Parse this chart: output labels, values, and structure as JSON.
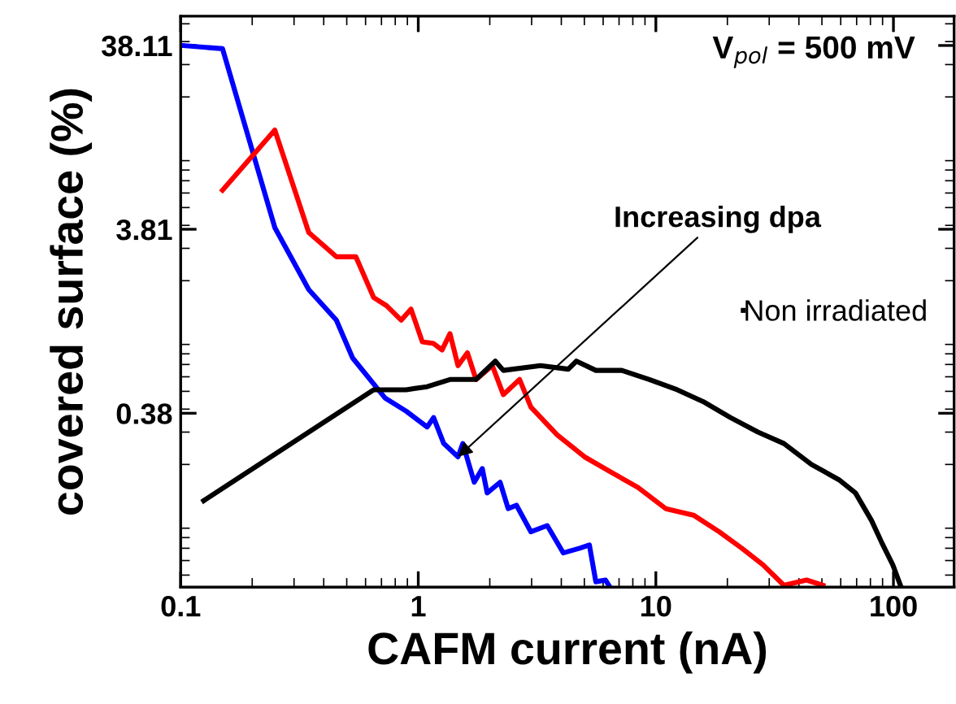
{
  "chart_data": {
    "type": "line",
    "xlabel": "CAFM current (nA)",
    "ylabel": "covered surface (%)",
    "log": "xy",
    "xlim": [
      0.1,
      180
    ],
    "ylim": [
      0.043,
      55
    ],
    "xticks": [
      0.1,
      1,
      10,
      100
    ],
    "yticks": [
      0.38,
      3.81,
      38.11
    ],
    "grid": false,
    "legend": "right",
    "marker": "none",
    "line_style": "solid",
    "annotations": [
      {
        "text": "Increasing dpa",
        "x": 1.47,
        "y": 0.22
      },
      "V$_{pol}$ = 500 mV"
    ],
    "series": [
      {
        "color": "#0000ff",
        "x": [
          0.1016,
          0.15,
          0.249,
          0.346,
          0.452,
          0.529,
          0.725,
          0.889,
          1.09,
          1.16,
          1.28,
          1.47,
          1.54,
          1.72,
          1.86,
          1.95,
          2.21,
          2.39,
          2.59,
          2.98,
          3.49,
          4.08,
          4.78,
          5.25,
          5.59,
          6.14,
          6.34
        ],
        "values": [
          38.11,
          36.6,
          3.89,
          1.79,
          1.22,
          0.76,
          0.46,
          0.39,
          0.32,
          0.36,
          0.26,
          0.22,
          0.26,
          0.16,
          0.19,
          0.14,
          0.16,
          0.115,
          0.12,
          0.086,
          0.093,
          0.066,
          0.07,
          0.073,
          0.046,
          0.047,
          0.044
        ]
      },
      {
        "color": "#ff0000",
        "x": [
          0.15,
          0.249,
          0.346,
          0.452,
          0.546,
          0.649,
          0.736,
          0.848,
          0.932,
          1.04,
          1.16,
          1.26,
          1.36,
          1.47,
          1.61,
          1.75,
          2.05,
          2.28,
          2.67,
          2.98,
          3.84,
          5.01,
          6.55,
          8.41,
          11.0,
          14.4,
          18.5,
          23.0,
          28.2,
          34.6,
          43.1,
          50.5
        ],
        "values": [
          6.21,
          13.2,
          3.66,
          2.7,
          2.7,
          1.62,
          1.46,
          1.22,
          1.4,
          0.93,
          0.91,
          0.84,
          1.03,
          0.69,
          0.81,
          0.58,
          0.69,
          0.48,
          0.58,
          0.41,
          0.29,
          0.22,
          0.18,
          0.15,
          0.115,
          0.106,
          0.086,
          0.07,
          0.057,
          0.044,
          0.047,
          0.044
        ]
      },
      {
        "name": "Non irradiated",
        "color": "#000000",
        "x": [
          0.125,
          0.649,
          0.889,
          1.09,
          1.36,
          1.75,
          2.11,
          2.28,
          3.27,
          4.28,
          4.63,
          5.59,
          7.19,
          9.39,
          12.3,
          15.8,
          20.6,
          26.9,
          34.6,
          45.2,
          59.0,
          69.2,
          80.9,
          88.9,
          99.3,
          107
        ],
        "values": [
          0.127,
          0.51,
          0.51,
          0.53,
          0.58,
          0.58,
          0.73,
          0.65,
          0.69,
          0.66,
          0.73,
          0.65,
          0.65,
          0.58,
          0.51,
          0.44,
          0.36,
          0.3,
          0.26,
          0.2,
          0.165,
          0.14,
          0.099,
          0.076,
          0.057,
          0.044
        ]
      }
    ]
  }
}
